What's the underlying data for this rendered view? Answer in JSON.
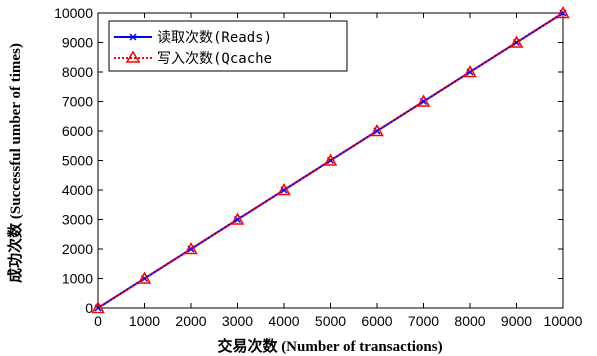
{
  "chart_data": {
    "type": "line",
    "x": [
      0,
      1000,
      2000,
      3000,
      4000,
      5000,
      6000,
      7000,
      8000,
      9000,
      10000
    ],
    "series": [
      {
        "name": "读取次数(Reads)",
        "values": [
          0,
          1000,
          2000,
          3000,
          4000,
          5000,
          6000,
          7000,
          8000,
          9000,
          10000
        ],
        "color": "#0000ff",
        "marker": "x",
        "style": "solid"
      },
      {
        "name": "写入次数(Qcache",
        "values": [
          0,
          1000,
          2000,
          3000,
          4000,
          5000,
          6000,
          7000,
          8000,
          9000,
          10000
        ],
        "color": "#ff0000",
        "marker": "triangle",
        "style": "dotted"
      }
    ],
    "title": "",
    "xlabel": "交易次数 (Number of transactions)",
    "ylabel": "成功次数 (Successful umber of times)",
    "xlim": [
      0,
      10000
    ],
    "ylim": [
      0,
      10000
    ],
    "xticks": [
      0,
      1000,
      2000,
      3000,
      4000,
      5000,
      6000,
      7000,
      8000,
      9000,
      10000
    ],
    "yticks": [
      0,
      1000,
      2000,
      3000,
      4000,
      5000,
      6000,
      7000,
      8000,
      9000,
      10000
    ],
    "grid": false,
    "legend_position": "top-left"
  }
}
